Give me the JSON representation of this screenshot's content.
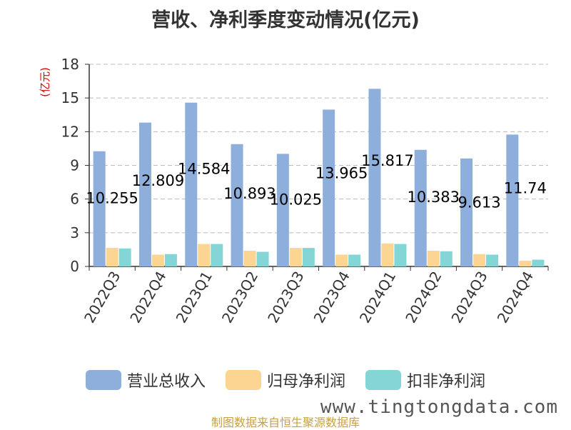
{
  "chart_data": {
    "type": "bar",
    "title": "营收、净利季度变动情况(亿元)",
    "ylabel": "(亿元)",
    "xlabel": "",
    "ylim": [
      0,
      18
    ],
    "yticks": [
      0,
      3,
      6,
      9,
      12,
      15,
      18
    ],
    "grid": true,
    "legend_position": "bottom",
    "categories": [
      "2022Q3",
      "2022Q4",
      "2023Q1",
      "2023Q2",
      "2023Q3",
      "2023Q4",
      "2024Q1",
      "2024Q2",
      "2024Q3",
      "2024Q4"
    ],
    "series": [
      {
        "name": "营业总收入",
        "color": "#8eaedc",
        "values": [
          10.255,
          12.809,
          14.584,
          10.893,
          10.025,
          13.965,
          15.817,
          10.383,
          9.613,
          11.74
        ],
        "data_labels": [
          "10.255",
          "12.809",
          "14.584",
          "10.893",
          "10.025",
          "13.965",
          "15.817",
          "10.383",
          "9.613",
          "11.74"
        ]
      },
      {
        "name": "归母净利润",
        "color": "#fcd593",
        "values": [
          1.65,
          1.05,
          2.0,
          1.4,
          1.65,
          1.05,
          2.05,
          1.4,
          1.1,
          0.5
        ]
      },
      {
        "name": "扣非净利润",
        "color": "#84d6d6",
        "values": [
          1.6,
          1.1,
          2.0,
          1.3,
          1.65,
          1.05,
          2.0,
          1.35,
          1.05,
          0.6
        ]
      }
    ]
  },
  "source_text": "制图数据来自恒生聚源数据库",
  "watermark_text": "www.tingtongdata.com"
}
